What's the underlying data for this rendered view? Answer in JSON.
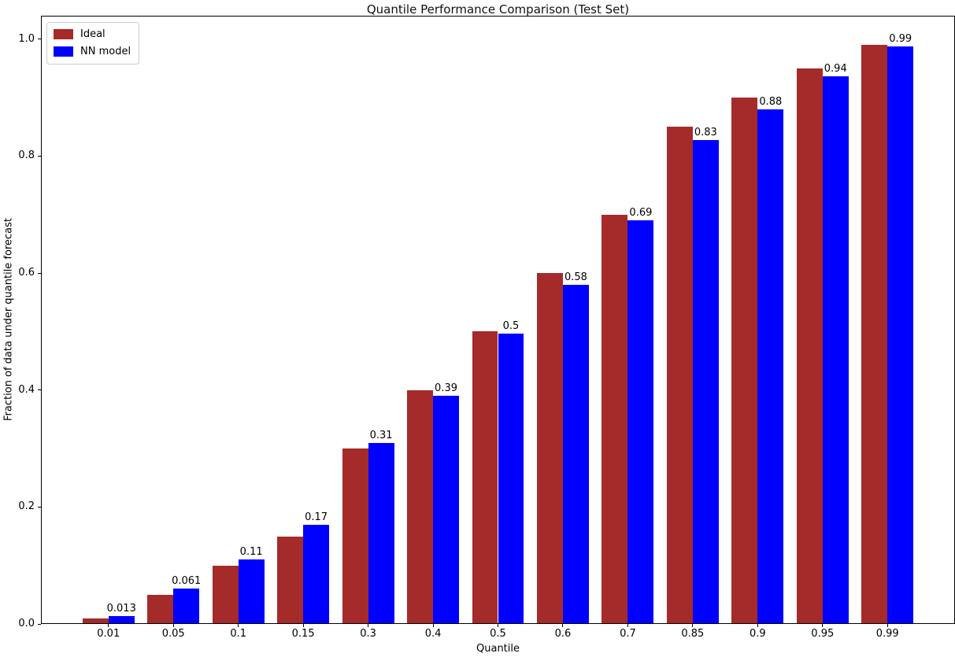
{
  "chart_data": {
    "type": "bar",
    "title": "Quantile Performance Comparison (Test Set)",
    "xlabel": "Quantile",
    "ylabel": "Fraction of data under quantile forecast",
    "categories": [
      "0.01",
      "0.05",
      "0.1",
      "0.15",
      "0.3",
      "0.4",
      "0.5",
      "0.6",
      "0.7",
      "0.85",
      "0.9",
      "0.95",
      "0.99"
    ],
    "series": [
      {
        "name": "Ideal",
        "color": "#A52A2A",
        "values": [
          0.01,
          0.05,
          0.1,
          0.15,
          0.3,
          0.4,
          0.5,
          0.6,
          0.7,
          0.85,
          0.9,
          0.95,
          0.99
        ]
      },
      {
        "name": "NN model",
        "color": "#0000FF",
        "values": [
          0.013,
          0.061,
          0.11,
          0.17,
          0.31,
          0.39,
          0.497,
          0.58,
          0.69,
          0.827,
          0.88,
          0.937,
          0.987
        ],
        "bar_labels": [
          "0.013",
          "0.061",
          "0.11",
          "0.17",
          "0.31",
          "0.39",
          "0.5",
          "0.58",
          "0.69",
          "0.83",
          "0.88",
          "0.94",
          "0.99"
        ]
      }
    ],
    "ylim": [
      0,
      1.04
    ],
    "yticks": [
      "0.0",
      "0.2",
      "0.4",
      "0.6",
      "0.8",
      "1.0"
    ],
    "legend_position": "upper left",
    "grid": false,
    "axis_color": "#000000",
    "background_color": "#FFFFFF"
  }
}
